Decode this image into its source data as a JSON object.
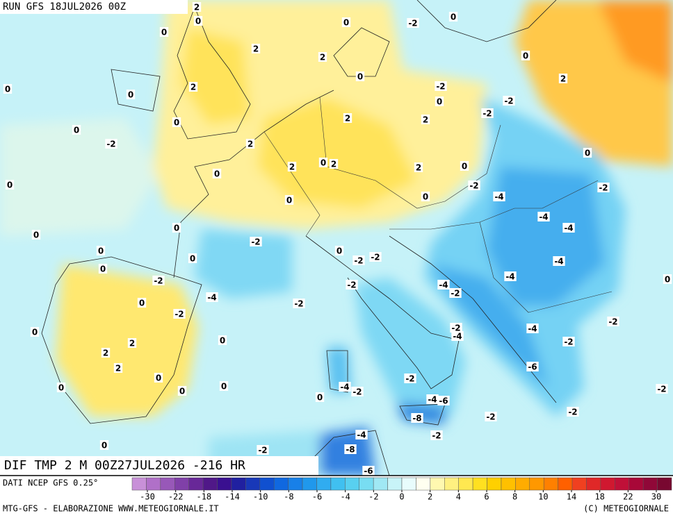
{
  "header": {
    "run": "RUN GFS 18JUL2026 00Z"
  },
  "map": {
    "title": "DIF TMP 2 M 00Z27JUL2026 -216 HR",
    "contour_labels": [
      2,
      0,
      0,
      2,
      2,
      0,
      -2,
      0,
      0,
      0,
      2,
      -2,
      0,
      -2,
      -2,
      0,
      0,
      2,
      0,
      -2,
      0,
      2,
      2,
      2,
      2,
      0,
      2,
      2,
      0,
      0,
      0,
      0,
      0,
      0,
      -2,
      -4,
      -2,
      0,
      0,
      -4,
      -4,
      -2,
      0,
      0,
      0,
      0,
      -2,
      -2,
      -4,
      -2,
      -2,
      -4,
      -2,
      -4,
      0,
      -4,
      0,
      -2,
      -2,
      -2,
      0,
      -2,
      -4,
      -4,
      0,
      2,
      -2,
      2,
      2,
      -6,
      0,
      -2,
      0,
      -4,
      -2,
      0,
      0,
      0,
      -4,
      -6,
      -2,
      -2,
      -8,
      -2,
      -2,
      -4,
      0,
      -2,
      -8,
      -6
    ]
  },
  "legend": {
    "source": "DATI NCEP GFS 0.25°",
    "ticks": [
      -30,
      -22,
      -18,
      -14,
      -10,
      -8,
      -6,
      -4,
      -2,
      0,
      2,
      4,
      6,
      8,
      10,
      14,
      18,
      22,
      30
    ],
    "colors": [
      "#c890d8",
      "#b070c8",
      "#9858b8",
      "#8040a8",
      "#682898",
      "#501888",
      "#3a1090",
      "#2020a0",
      "#1838b8",
      "#1050d0",
      "#1068e0",
      "#1880e8",
      "#2098ec",
      "#30acf0",
      "#40c0f0",
      "#58d0f0",
      "#78ddf2",
      "#a0e8f4",
      "#c8f4f8",
      "#e8fcfc",
      "#fffff0",
      "#fff8b0",
      "#fff080",
      "#ffe850",
      "#ffe020",
      "#ffd000",
      "#ffc000",
      "#ffac00",
      "#ff9800",
      "#ff8000",
      "#ff6000",
      "#f04020",
      "#e02828",
      "#d01830",
      "#c01038",
      "#a80838",
      "#900838",
      "#780830"
    ]
  },
  "footer": {
    "left": "MTG-GFS - ELABORAZIONE WWW.METEOGIORNALE.IT",
    "right": "(C) METEOGIORNALE"
  }
}
